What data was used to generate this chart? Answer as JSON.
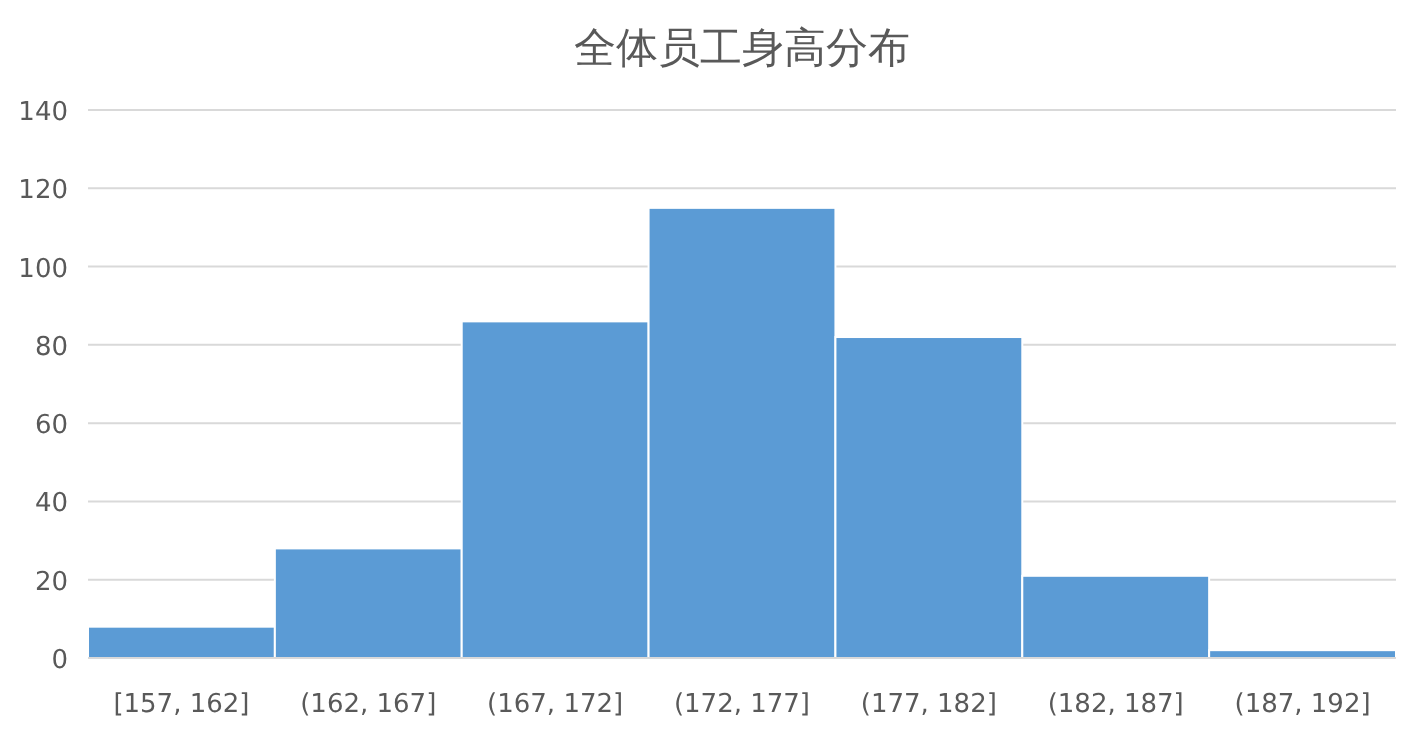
{
  "chart_data": {
    "type": "bar",
    "title": "全体员工身高分布",
    "categories": [
      "[157, 162]",
      "(162, 167]",
      "(167, 172]",
      "(172, 177]",
      "(177, 182]",
      "(182, 187]",
      "(187, 192]"
    ],
    "values": [
      8,
      28,
      86,
      115,
      82,
      21,
      2
    ],
    "color": "#5b9bd5",
    "ylim": [
      0,
      140
    ],
    "yticks": [
      0,
      20,
      40,
      60,
      80,
      100,
      120,
      140
    ],
    "grid": "y"
  }
}
